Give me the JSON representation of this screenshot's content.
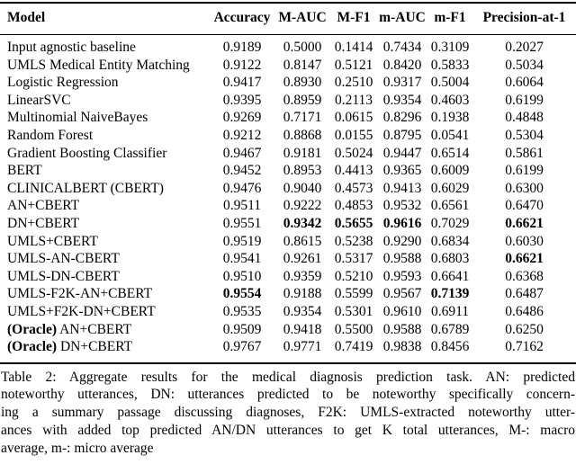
{
  "table": {
    "columns": [
      "Model",
      "Accuracy",
      "M-AUC",
      "M-F1",
      "m-AUC",
      "m-F1",
      "Precision-at-1"
    ],
    "rows": [
      {
        "model": "Input agnostic baseline",
        "model_prefix": "",
        "values": [
          "0.9189",
          "0.5000",
          "0.1414",
          "0.7434",
          "0.3109",
          "0.2027"
        ],
        "bold_values": [],
        "bold_model": false
      },
      {
        "model": "UMLS Medical Entity Matching",
        "model_prefix": "",
        "values": [
          "0.9122",
          "0.8147",
          "0.5121",
          "0.8420",
          "0.5833",
          "0.5034"
        ],
        "bold_values": [],
        "bold_model": false
      },
      {
        "model": "Logistic Regression",
        "model_prefix": "",
        "values": [
          "0.9417",
          "0.8930",
          "0.2510",
          "0.9317",
          "0.5004",
          "0.6064"
        ],
        "bold_values": [],
        "bold_model": false
      },
      {
        "model": "LinearSVC",
        "model_prefix": "",
        "values": [
          "0.9395",
          "0.8959",
          "0.2113",
          "0.9354",
          "0.4603",
          "0.6199"
        ],
        "bold_values": [],
        "bold_model": false
      },
      {
        "model": "Multinomial NaiveBayes",
        "model_prefix": "",
        "values": [
          "0.9269",
          "0.7171",
          "0.0615",
          "0.8296",
          "0.1938",
          "0.4848"
        ],
        "bold_values": [],
        "bold_model": false
      },
      {
        "model": "Random Forest",
        "model_prefix": "",
        "values": [
          "0.9212",
          "0.8868",
          "0.0155",
          "0.8795",
          "0.0541",
          "0.5304"
        ],
        "bold_values": [],
        "bold_model": false
      },
      {
        "model": "Gradient Boosting Classifier",
        "model_prefix": "",
        "values": [
          "0.9467",
          "0.9181",
          "0.5024",
          "0.9447",
          "0.6514",
          "0.5861"
        ],
        "bold_values": [],
        "bold_model": false
      },
      {
        "model": "BERT",
        "model_prefix": "",
        "values": [
          "0.9452",
          "0.8953",
          "0.4413",
          "0.9365",
          "0.6009",
          "0.6199"
        ],
        "bold_values": [],
        "bold_model": false
      },
      {
        "model": "CLINICALBERT (CBERT)",
        "model_prefix": "",
        "values": [
          "0.9476",
          "0.9040",
          "0.4573",
          "0.9413",
          "0.6029",
          "0.6300"
        ],
        "bold_values": [],
        "bold_model": false
      },
      {
        "model": "AN+CBERT",
        "model_prefix": "",
        "values": [
          "0.9511",
          "0.9222",
          "0.4853",
          "0.9532",
          "0.6561",
          "0.6470"
        ],
        "bold_values": [],
        "bold_model": false
      },
      {
        "model": "DN+CBERT",
        "model_prefix": "",
        "values": [
          "0.9551",
          "0.9342",
          "0.5655",
          "0.9616",
          "0.7029",
          "0.6621"
        ],
        "bold_values": [
          1,
          2,
          3,
          5
        ],
        "bold_model": false
      },
      {
        "model": "UMLS+CBERT",
        "model_prefix": "",
        "values": [
          "0.9519",
          "0.8615",
          "0.5238",
          "0.9290",
          "0.6834",
          "0.6030"
        ],
        "bold_values": [],
        "bold_model": false
      },
      {
        "model": "UMLS-AN-CBERT",
        "model_prefix": "",
        "values": [
          "0.9541",
          "0.9261",
          "0.5317",
          "0.9588",
          "0.6803",
          "0.6621"
        ],
        "bold_values": [
          5
        ],
        "bold_model": false
      },
      {
        "model": "UMLS-DN-CBERT",
        "model_prefix": "",
        "values": [
          "0.9510",
          "0.9359",
          "0.5210",
          "0.9593",
          "0.6641",
          "0.6368"
        ],
        "bold_values": [],
        "bold_model": false
      },
      {
        "model": "UMLS-F2K-AN+CBERT",
        "model_prefix": "",
        "values": [
          "0.9554",
          "0.9188",
          "0.5599",
          "0.9567",
          "0.7139",
          "0.6487"
        ],
        "bold_values": [
          0,
          4
        ],
        "bold_model": false
      },
      {
        "model": "UMLS+F2K-DN+CBERT",
        "model_prefix": "",
        "values": [
          "0.9535",
          "0.9354",
          "0.5301",
          "0.9610",
          "0.6911",
          "0.6486"
        ],
        "bold_values": [],
        "bold_model": false
      },
      {
        "model": " AN+CBERT",
        "model_prefix": "(Oracle)",
        "values": [
          "0.9509",
          "0.9418",
          "0.5500",
          "0.9588",
          "0.6789",
          "0.6250"
        ],
        "bold_values": [],
        "bold_model": false
      },
      {
        "model": " DN+CBERT",
        "model_prefix": "(Oracle)",
        "values": [
          "0.9767",
          "0.9771",
          "0.7419",
          "0.9838",
          "0.8456",
          "0.7162"
        ],
        "bold_values": [],
        "bold_model": false
      }
    ]
  },
  "caption": {
    "lines": [
      "Table 2: Aggregate results for the medical diagnosis prediction task. AN: predicted",
      "noteworthy utterances, DN: utterances predicted to be noteworthy specifically concern-",
      "ing a summary passage discussing diagnoses, F2K: UMLS-extracted noteworthy utter-",
      "ances with added top predicted AN/DN utterances to get K total utterances, M-: macro",
      "average, m-: micro average"
    ]
  },
  "colors": {
    "text": "#000000",
    "background": "#ffffff",
    "rule": "#000000"
  }
}
